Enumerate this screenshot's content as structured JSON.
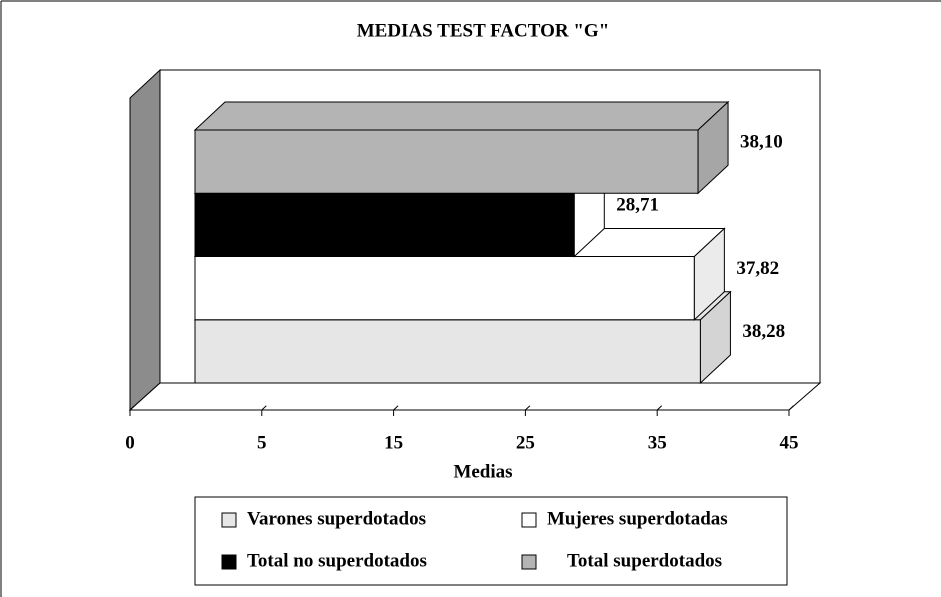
{
  "chart_data": {
    "type": "bar3d-horizontal",
    "title": "MEDIAS TEST FACTOR \"G\"",
    "x_label": "Medias",
    "xlim": [
      0,
      45
    ],
    "xticks": [
      0,
      5,
      15,
      25,
      35,
      45
    ],
    "series": [
      {
        "name": "Varones superdotados",
        "color": "#e6e6e6",
        "values": [
          38.28
        ],
        "value_labels": [
          "38,28"
        ]
      },
      {
        "name": "Mujeres superdotadas",
        "color": "#ffffff",
        "values": [
          37.82
        ],
        "value_labels": [
          "37,82"
        ]
      },
      {
        "name": "Total no superdotados",
        "color": "#000000",
        "values": [
          28.71
        ],
        "value_labels": [
          "28,71"
        ]
      },
      {
        "name": "Total superdotados",
        "color": "#b4b4b4",
        "values": [
          38.1
        ],
        "value_labels": [
          "38,10"
        ]
      }
    ]
  }
}
